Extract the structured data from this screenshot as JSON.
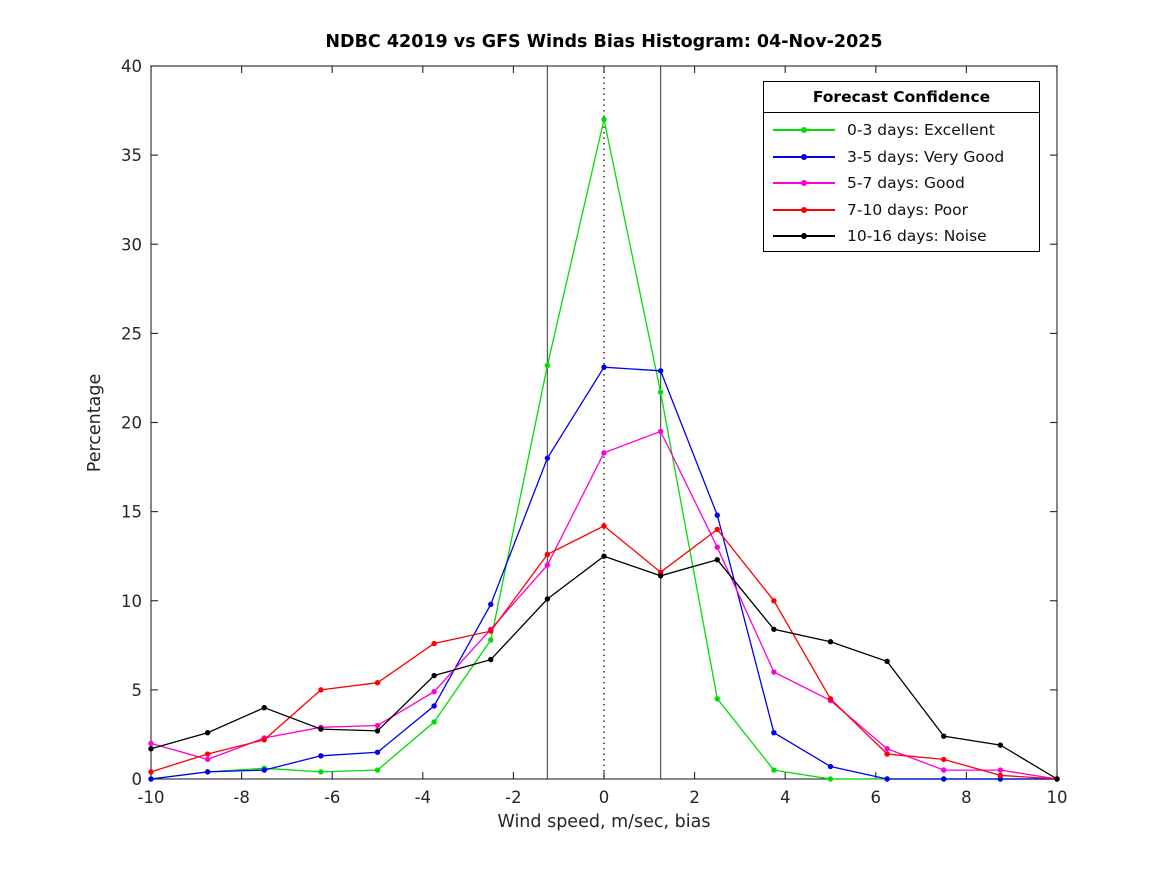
{
  "chart_data": {
    "type": "line",
    "title": "NDBC 42019 vs GFS Winds Bias Histogram: 04-Nov-2025",
    "xlabel": "Wind speed, m/sec, bias",
    "ylabel": "Percentage",
    "xlim": [
      -10,
      10
    ],
    "ylim": [
      0,
      40
    ],
    "x_ticks": [
      -10,
      -8,
      -6,
      -4,
      -2,
      0,
      2,
      4,
      6,
      8,
      10
    ],
    "y_ticks": [
      0,
      5,
      10,
      15,
      20,
      25,
      30,
      35,
      40
    ],
    "grid": false,
    "x": [
      -10,
      -8.75,
      -7.5,
      -6.25,
      -5,
      -3.75,
      -2.5,
      -1.25,
      0,
      1.25,
      2.5,
      3.75,
      5,
      6.25,
      7.5,
      8.75,
      10
    ],
    "series": [
      {
        "name": "0-3 days: Excellent",
        "color": "#00dd00",
        "values": [
          0.0,
          0.4,
          0.6,
          0.4,
          0.5,
          3.2,
          7.8,
          23.2,
          37.0,
          21.7,
          4.5,
          0.5,
          0.0,
          0.0,
          0.0,
          0.0,
          0.0
        ]
      },
      {
        "name": "3-5 days: Very Good",
        "color": "#0000ee",
        "values": [
          0.0,
          0.4,
          0.5,
          1.3,
          1.5,
          4.1,
          9.8,
          18.0,
          23.1,
          22.9,
          14.8,
          2.6,
          0.7,
          0.0,
          0.0,
          0.0,
          0.0
        ]
      },
      {
        "name": "5-7 days: Good",
        "color": "#ff00d5",
        "values": [
          2.0,
          1.1,
          2.3,
          2.9,
          3.0,
          4.9,
          8.4,
          12.0,
          18.3,
          19.5,
          13.0,
          6.0,
          4.4,
          1.7,
          0.5,
          0.5,
          0.0
        ]
      },
      {
        "name": "7-10 days: Poor",
        "color": "#ff0000",
        "values": [
          0.4,
          1.4,
          2.2,
          5.0,
          5.4,
          7.6,
          8.3,
          12.6,
          14.2,
          11.6,
          14.0,
          10.0,
          4.5,
          1.4,
          1.1,
          0.2,
          0.0
        ]
      },
      {
        "name": "10-16 days: Noise",
        "color": "#000000",
        "values": [
          1.7,
          2.6,
          4.0,
          2.8,
          2.7,
          5.8,
          6.7,
          10.1,
          12.5,
          11.4,
          12.3,
          8.4,
          7.7,
          6.6,
          2.4,
          1.9,
          0.0
        ]
      }
    ],
    "reference_lines": {
      "solid_vertical_x": [
        -1.25,
        1.25
      ],
      "dotted_vertical_x": [
        0
      ]
    },
    "legend": {
      "title": "Forecast Confidence",
      "position": "top-right"
    },
    "colors": {
      "axis": "#262626",
      "reference_line": "#555555",
      "background": "#ffffff"
    }
  }
}
